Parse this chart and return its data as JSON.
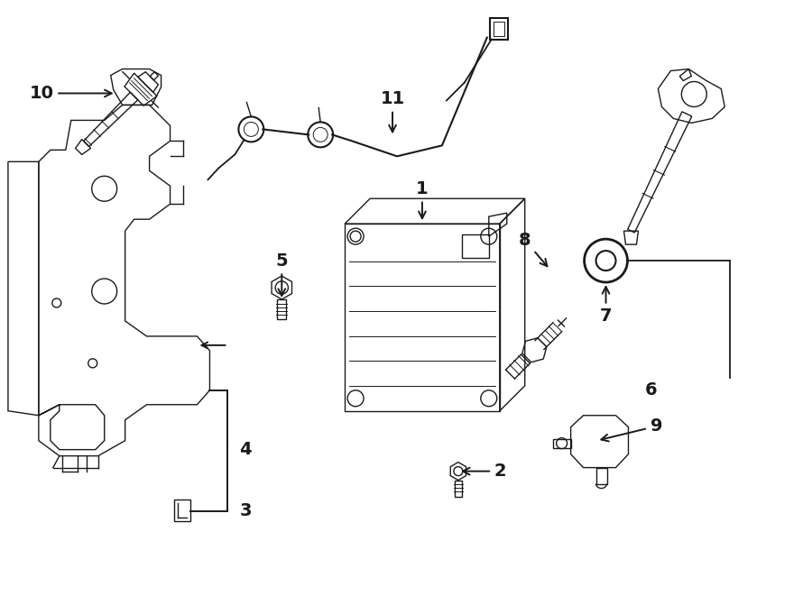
{
  "bg_color": "#ffffff",
  "line_color": "#1a1a1a",
  "fig_width": 9.0,
  "fig_height": 6.61,
  "dpi": 100,
  "lw": 1.0,
  "label_fontsize": 14
}
